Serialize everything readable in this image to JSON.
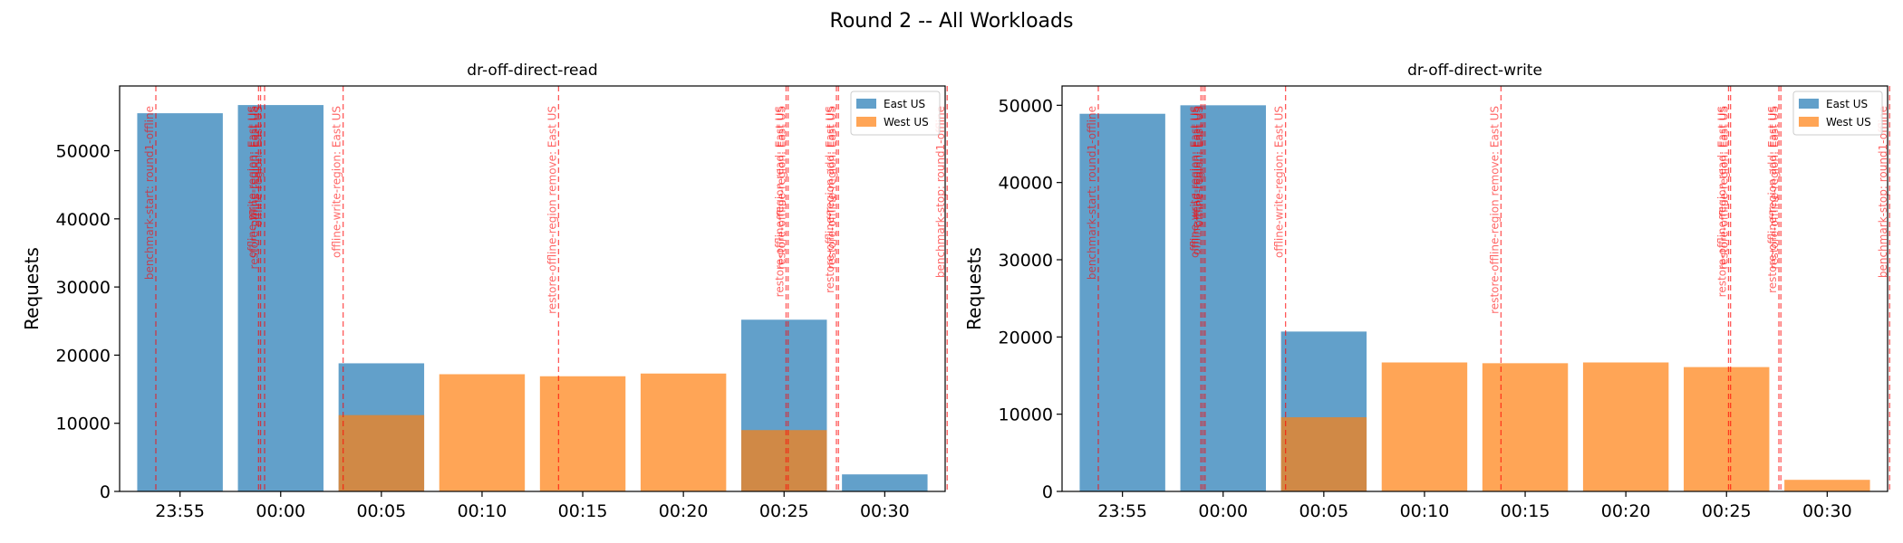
{
  "figure": {
    "suptitle": "Round 2 -- All Workloads"
  },
  "colors": {
    "east": "#1f77b4",
    "west": "#ff7f0e",
    "event": "#ff0000"
  },
  "chart_data": [
    {
      "type": "bar",
      "title": "dr-off-direct-read",
      "xlabel": "",
      "ylabel": "Requests",
      "ylim": [
        0,
        59500
      ],
      "yticks": [
        0,
        10000,
        20000,
        30000,
        40000,
        50000
      ],
      "categories": [
        "23:55",
        "00:00",
        "00:05",
        "00:10",
        "00:15",
        "00:20",
        "00:25",
        "00:30"
      ],
      "series": [
        {
          "name": "East US",
          "values": [
            55500,
            56700,
            18800,
            0,
            0,
            0,
            25200,
            2500
          ]
        },
        {
          "name": "West US",
          "values": [
            0,
            0,
            11200,
            17200,
            16900,
            17300,
            9000,
            0
          ]
        }
      ],
      "legend": "top-right",
      "events": [
        {
          "x": -0.24,
          "label": "benchmark-start: round1-offline"
        },
        {
          "x": 0.78,
          "label": "offline-write-region: East US"
        },
        {
          "x": 0.8,
          "label": "restore-offline-region: East US"
        },
        {
          "x": 0.84,
          "label": "offline-region: East US"
        },
        {
          "x": 1.62,
          "label": "offline-write-region: East US"
        },
        {
          "x": 3.76,
          "label": "restore-offline-region remove: East US"
        },
        {
          "x": 6.02,
          "label": "restore-offline-region read: East US"
        },
        {
          "x": 6.04,
          "label": "restore-offline-region: East US"
        },
        {
          "x": 6.52,
          "label": "restore-offline-region add: East US"
        },
        {
          "x": 6.54,
          "label": "restore-offline-region: East US"
        },
        {
          "x": 7.62,
          "label": "benchmark-stop: round1-offline"
        }
      ]
    },
    {
      "type": "bar",
      "title": "dr-off-direct-write",
      "xlabel": "",
      "ylabel": "Requests",
      "ylim": [
        0,
        52500
      ],
      "yticks": [
        0,
        10000,
        20000,
        30000,
        40000,
        50000
      ],
      "categories": [
        "23:55",
        "00:00",
        "00:05",
        "00:10",
        "00:15",
        "00:20",
        "00:25",
        "00:30"
      ],
      "series": [
        {
          "name": "East US",
          "values": [
            48900,
            50000,
            20700,
            0,
            0,
            0,
            0,
            0
          ]
        },
        {
          "name": "West US",
          "values": [
            0,
            0,
            9600,
            16700,
            16600,
            16700,
            16100,
            1500
          ]
        }
      ],
      "legend": "top-right",
      "events": [
        {
          "x": -0.24,
          "label": "benchmark-start: round1-offline"
        },
        {
          "x": 0.78,
          "label": "offline-write-region: East US"
        },
        {
          "x": 0.8,
          "label": "offline-read-region: East US"
        },
        {
          "x": 0.82,
          "label": "offline-region: East US"
        },
        {
          "x": 1.62,
          "label": "offline-write-region: East US"
        },
        {
          "x": 3.76,
          "label": "restore-offline-region remove: East US"
        },
        {
          "x": 6.02,
          "label": "restore-offline-region read: East US"
        },
        {
          "x": 6.04,
          "label": "restore-offline-region: East US"
        },
        {
          "x": 6.52,
          "label": "restore-offline-region add: East US"
        },
        {
          "x": 6.54,
          "label": "restore-offline-region: East US"
        },
        {
          "x": 7.62,
          "label": "benchmark-stop: round1-offline"
        }
      ]
    }
  ]
}
